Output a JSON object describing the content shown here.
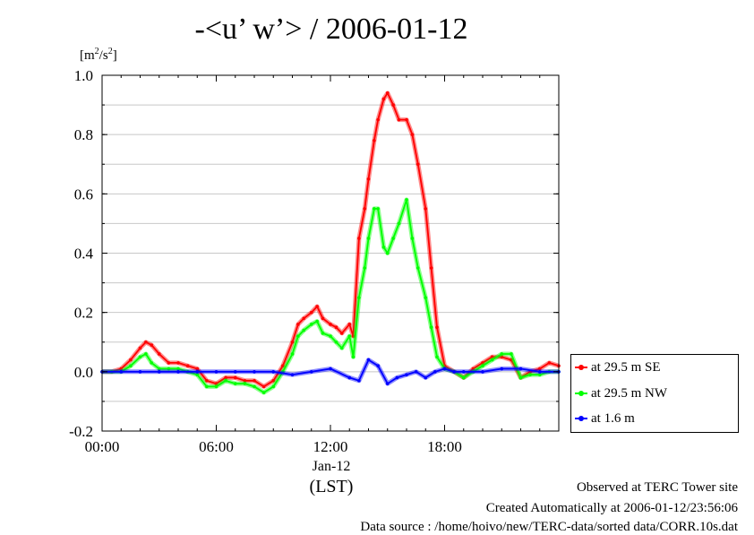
{
  "chart_data": {
    "type": "line",
    "title": "-<u’ w’> / 2006-01-12",
    "ylabel_unit_base": "[m",
    "ylabel_unit_exp1": "2",
    "ylabel_unit_mid": "/s",
    "ylabel_unit_exp2": "2",
    "ylabel_unit_end": "]",
    "ylim": [
      -0.2,
      1.0
    ],
    "yticks": [
      {
        "v": 1.0,
        "label": "1.0"
      },
      {
        "v": 0.8,
        "label": "0.8"
      },
      {
        "v": 0.6,
        "label": "0.6"
      },
      {
        "v": 0.4,
        "label": "0.4"
      },
      {
        "v": 0.2,
        "label": "0.2"
      },
      {
        "v": 0.0,
        "label": "0.0"
      },
      {
        "v": -0.2,
        "label": "-0.2"
      }
    ],
    "xlim": [
      0,
      24
    ],
    "xticks": [
      {
        "v": 0,
        "label": "00:00"
      },
      {
        "v": 6,
        "label": "06:00"
      },
      {
        "v": 12,
        "label": "12:00"
      },
      {
        "v": 18,
        "label": "18:00"
      }
    ],
    "xdate_label": "Jan-12",
    "xunit_label": "(LST)",
    "grid": true,
    "legend_placement": "right, outside plot",
    "series": [
      {
        "name": "at 29.5 m SE",
        "color": "#ff0000",
        "x": [
          0,
          0.5,
          1,
          1.5,
          2,
          2.3,
          2.6,
          3,
          3.5,
          4,
          4.5,
          5,
          5.5,
          6,
          6.5,
          7,
          7.5,
          8,
          8.5,
          9,
          9.5,
          10,
          10.3,
          10.6,
          11,
          11.3,
          11.6,
          12,
          12.3,
          12.6,
          13,
          13.2,
          13.5,
          13.8,
          14,
          14.3,
          14.5,
          14.8,
          15,
          15.3,
          15.6,
          16,
          16.3,
          16.6,
          17,
          17.3,
          17.6,
          18,
          18.5,
          19,
          19.5,
          20,
          20.5,
          21,
          21.5,
          22,
          22.5,
          23,
          23.5,
          24
        ],
        "values": [
          0.0,
          0.0,
          0.01,
          0.04,
          0.08,
          0.1,
          0.09,
          0.06,
          0.03,
          0.03,
          0.02,
          0.01,
          -0.03,
          -0.04,
          -0.02,
          -0.02,
          -0.03,
          -0.03,
          -0.05,
          -0.03,
          0.02,
          0.1,
          0.16,
          0.18,
          0.2,
          0.22,
          0.18,
          0.16,
          0.15,
          0.13,
          0.16,
          0.12,
          0.45,
          0.55,
          0.65,
          0.78,
          0.85,
          0.92,
          0.94,
          0.9,
          0.85,
          0.85,
          0.8,
          0.7,
          0.55,
          0.35,
          0.15,
          0.02,
          0.0,
          -0.02,
          0.01,
          0.03,
          0.05,
          0.05,
          0.04,
          -0.02,
          0.0,
          0.01,
          0.03,
          0.02
        ]
      },
      {
        "name": "at 29.5 m NW",
        "color": "#00ff00",
        "x": [
          0,
          0.5,
          1,
          1.5,
          2,
          2.3,
          2.6,
          3,
          3.5,
          4,
          4.5,
          5,
          5.5,
          6,
          6.5,
          7,
          7.5,
          8,
          8.5,
          9,
          9.5,
          10,
          10.3,
          10.6,
          11,
          11.3,
          11.6,
          12,
          12.3,
          12.6,
          13,
          13.2,
          13.5,
          13.8,
          14,
          14.3,
          14.5,
          14.8,
          15,
          15.3,
          15.6,
          16,
          16.3,
          16.6,
          17,
          17.3,
          17.6,
          18,
          18.5,
          19,
          19.5,
          20,
          20.5,
          21,
          21.5,
          22,
          22.5,
          23,
          23.5,
          24
        ],
        "values": [
          0.0,
          0.0,
          0.0,
          0.02,
          0.05,
          0.06,
          0.03,
          0.01,
          0.01,
          0.01,
          0.0,
          -0.01,
          -0.05,
          -0.05,
          -0.03,
          -0.04,
          -0.04,
          -0.05,
          -0.07,
          -0.05,
          0.0,
          0.06,
          0.12,
          0.14,
          0.16,
          0.17,
          0.13,
          0.12,
          0.1,
          0.08,
          0.12,
          0.05,
          0.25,
          0.35,
          0.45,
          0.55,
          0.55,
          0.42,
          0.4,
          0.45,
          0.5,
          0.58,
          0.45,
          0.35,
          0.25,
          0.15,
          0.05,
          0.01,
          0.0,
          -0.02,
          0.0,
          0.02,
          0.04,
          0.06,
          0.06,
          -0.02,
          -0.01,
          -0.01,
          0.0,
          0.0
        ]
      },
      {
        "name": "at 1.6 m",
        "color": "#0000ff",
        "x": [
          0,
          1,
          2,
          3,
          4,
          5,
          6,
          7,
          8,
          9,
          10,
          11,
          12,
          13,
          13.5,
          14,
          14.5,
          15,
          15.5,
          16,
          16.5,
          17,
          17.5,
          18,
          18.5,
          19,
          20,
          21,
          22,
          23,
          24
        ],
        "values": [
          0.0,
          0.0,
          0.0,
          0.0,
          0.0,
          0.0,
          0.0,
          0.0,
          0.0,
          0.0,
          -0.01,
          0.0,
          0.01,
          -0.02,
          -0.03,
          0.04,
          0.02,
          -0.04,
          -0.02,
          -0.01,
          0.0,
          -0.02,
          0.0,
          0.01,
          0.0,
          0.0,
          0.0,
          0.01,
          0.01,
          0.0,
          0.0
        ]
      }
    ]
  },
  "footer": {
    "line1": "Observed at TERC Tower site",
    "line2": "Created Automatically at 2006-01-12/23:56:06",
    "line3": "Data source : /home/hoivo/new/TERC-data/sorted  data/CORR.10s.dat"
  }
}
